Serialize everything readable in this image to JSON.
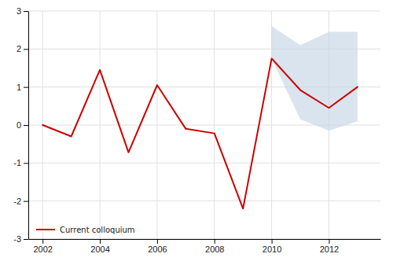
{
  "chart_data": {
    "type": "line",
    "x": [
      2002,
      2003,
      2004,
      2005,
      2006,
      2007,
      2008,
      2009,
      2010,
      2011,
      2012,
      2013
    ],
    "series": [
      {
        "name": "Current colloquium",
        "color": "#cc0000",
        "values": [
          0.0,
          -0.3,
          1.45,
          -0.72,
          1.05,
          -0.1,
          -0.22,
          -2.2,
          1.75,
          0.92,
          0.45,
          1.0
        ]
      }
    ],
    "band": {
      "x": [
        2010,
        2011,
        2012,
        2013
      ],
      "lower": [
        1.75,
        0.15,
        -0.15,
        0.1
      ],
      "upper": [
        2.6,
        2.1,
        2.45,
        2.45
      ],
      "color": "#c5d5e5"
    },
    "xlim": [
      2001.5,
      2013.8
    ],
    "xticks": [
      2002,
      2004,
      2006,
      2008,
      2010,
      2012
    ],
    "ylim": [
      -3,
      3
    ],
    "yticks": [
      -3,
      -2,
      -1,
      0,
      1,
      2,
      3
    ],
    "grid": true,
    "legend": "lower left"
  }
}
